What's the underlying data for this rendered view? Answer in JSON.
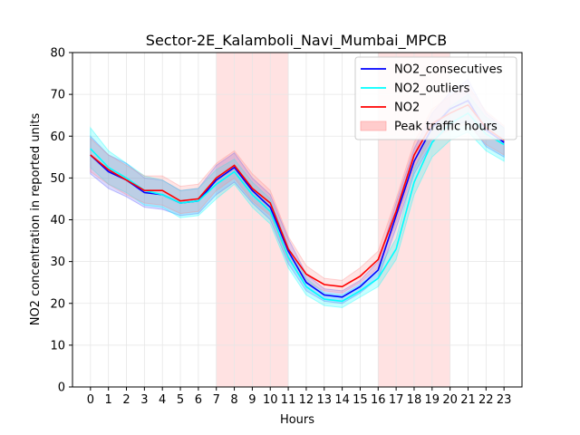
{
  "chart_data": {
    "type": "line",
    "title": "Sector-2E_Kalamboli_Navi_Mumbai_MPCB",
    "xlabel": "Hours",
    "ylabel": "NO2 concentration in reported units",
    "xlim": [
      -1,
      24
    ],
    "ylim": [
      0,
      80
    ],
    "x_ticks": [
      0,
      1,
      2,
      3,
      4,
      5,
      6,
      7,
      8,
      9,
      10,
      11,
      12,
      13,
      14,
      15,
      16,
      17,
      18,
      19,
      20,
      21,
      22,
      23
    ],
    "y_ticks": [
      0,
      10,
      20,
      30,
      40,
      50,
      60,
      70,
      80
    ],
    "grid": true,
    "legend_position": "top-right",
    "x": [
      0,
      1,
      2,
      3,
      4,
      5,
      6,
      7,
      8,
      9,
      10,
      11,
      12,
      13,
      14,
      15,
      16,
      17,
      18,
      19,
      20,
      21,
      22,
      23
    ],
    "peak_hours": [
      [
        7,
        11
      ],
      [
        16,
        20
      ]
    ],
    "series": [
      {
        "name": "NO2_consecutives",
        "color": "#0000ff",
        "values": [
          55.5,
          51.5,
          49.5,
          46.5,
          46.0,
          44.0,
          44.5,
          49.5,
          52.5,
          47.0,
          43.0,
          32.5,
          25.0,
          22.0,
          21.5,
          24.0,
          28.0,
          41.0,
          54.0,
          62.0,
          66.5,
          68.5,
          61.5,
          58.5
        ],
        "band_lower": [
          51,
          47.5,
          45.5,
          43,
          42.5,
          41,
          41.5,
          46,
          49,
          44,
          40,
          29.5,
          23,
          20.5,
          20,
          22.5,
          26,
          38,
          51,
          58.5,
          62.5,
          63.5,
          57.5,
          55
        ],
        "band_upper": [
          60,
          55.5,
          53.5,
          50,
          49.5,
          47,
          47.5,
          53,
          56,
          50,
          46,
          35.5,
          27,
          23.5,
          23,
          25.5,
          30,
          44,
          57,
          65.5,
          70.5,
          73.5,
          65.5,
          62
        ],
        "band_color": "#5555ff"
      },
      {
        "name": "NO2_outliers",
        "color": "#00ffff",
        "values": [
          57.0,
          52.5,
          50.0,
          47.0,
          46.0,
          44.0,
          44.5,
          48.5,
          51.5,
          46.0,
          42.0,
          31.0,
          24.0,
          21.0,
          20.5,
          23.0,
          26.0,
          33.0,
          49.0,
          58.5,
          63.0,
          65.5,
          60.5,
          58.0
        ],
        "band_lower": [
          52.5,
          48.5,
          46.5,
          43.5,
          43,
          40.5,
          41,
          45,
          48.5,
          43,
          39,
          28.5,
          22,
          19.5,
          19,
          21.5,
          24,
          30.5,
          46,
          55,
          59,
          61,
          56.5,
          54
        ],
        "band_upper": [
          62,
          56.5,
          53.5,
          50.5,
          49.5,
          47,
          47.5,
          52,
          54.5,
          49,
          45,
          33.5,
          26,
          22.5,
          22,
          24.5,
          28,
          35.5,
          52,
          62,
          67,
          70,
          64.5,
          62
        ],
        "band_color": "#00ffff"
      },
      {
        "name": "NO2",
        "color": "#ff0000",
        "values": [
          55.5,
          52.0,
          49.5,
          47.0,
          47.0,
          44.5,
          45.0,
          50.0,
          53.0,
          47.5,
          44.0,
          33.0,
          27.0,
          24.5,
          24.0,
          26.5,
          30.5,
          42.0,
          55.5,
          63.0,
          65.5,
          67.5,
          62.0,
          59.0
        ],
        "band_lower": [
          51.5,
          48.5,
          46,
          44,
          43.5,
          41.5,
          42,
          47,
          50,
          44.5,
          41,
          30.5,
          25,
          23,
          22.5,
          25,
          28.5,
          39.5,
          52.5,
          59.5,
          61.5,
          63,
          58,
          55.5
        ],
        "band_upper": [
          59.5,
          55.5,
          53,
          50.5,
          50.5,
          48,
          48.5,
          53.5,
          56.5,
          51,
          47,
          36,
          29,
          26,
          25.5,
          28.5,
          32.5,
          45,
          58.5,
          66.5,
          69.5,
          72,
          66,
          62.5
        ],
        "band_color": "#ff8888"
      }
    ],
    "legend": [
      {
        "label": "NO2_consecutives",
        "kind": "line",
        "color": "#0000ff"
      },
      {
        "label": "NO2_outliers",
        "kind": "line",
        "color": "#00ffff"
      },
      {
        "label": "NO2",
        "kind": "line",
        "color": "#ff0000"
      },
      {
        "label": "Peak traffic hours",
        "kind": "patch",
        "color": "#ffcccc"
      }
    ]
  }
}
